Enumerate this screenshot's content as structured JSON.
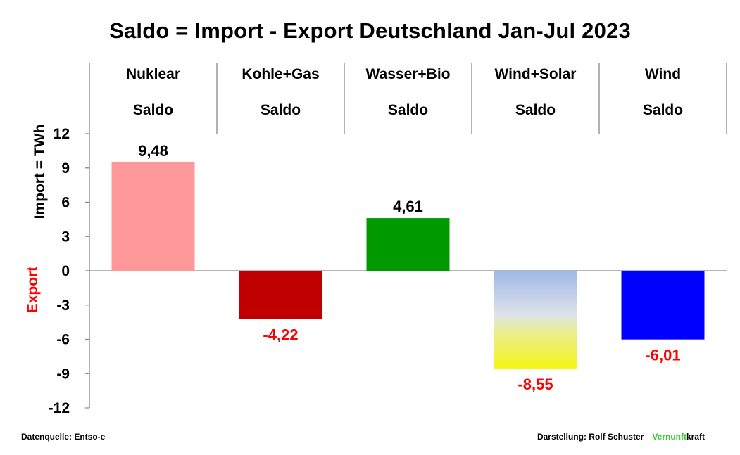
{
  "chart_data": {
    "type": "bar",
    "title": "Saldo = Import - Export Deutschland Jan-Jul 2023",
    "ylabel_positive": "Import = TWh",
    "ylabel_negative": "Export",
    "ylim": [
      -12,
      12
    ],
    "yticks": [
      12,
      9,
      6,
      3,
      0,
      -3,
      -6,
      -9,
      -12
    ],
    "ytick_labels": [
      "12",
      "9",
      "6",
      "3",
      "0",
      "-3",
      "-6",
      "-9",
      "-12"
    ],
    "grid": false,
    "categories": [
      {
        "line1": "Nuklear",
        "line2": "Saldo"
      },
      {
        "line1": "Kohle+Gas",
        "line2": "Saldo"
      },
      {
        "line1": "Wasser+Bio",
        "line2": "Saldo"
      },
      {
        "line1": "Wind+Solar",
        "line2": "Saldo"
      },
      {
        "line1": "Wind",
        "line2": "Saldo"
      }
    ],
    "values": [
      9.48,
      -4.22,
      4.61,
      -8.55,
      -6.01
    ],
    "value_labels": [
      "9,48",
      "-4,22",
      "4,61",
      "-8,55",
      "-6,01"
    ],
    "bar_colors": [
      "#ff9999",
      "#c00000",
      "#009900",
      "gradient-blue-yellow",
      "#0000ff"
    ],
    "positive_label_color": "#000000",
    "negative_label_color": "#ff0000"
  },
  "footer": {
    "source": "Datenquelle: Entso-e",
    "credit": "Darstellung:  Rolf Schuster",
    "brand_part1": "Vernunft",
    "brand_part2": "kraft"
  }
}
